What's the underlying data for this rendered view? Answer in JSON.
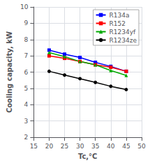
{
  "chart_data": {
    "type": "line",
    "xlabel": "Tc,°C",
    "ylabel": "Cooling capacity, kW",
    "x": [
      20,
      25,
      30,
      35,
      40,
      45
    ],
    "series": [
      {
        "name": "R134a",
        "color": "#0000ff",
        "marker": "square",
        "values": [
          7.35,
          7.1,
          6.9,
          6.6,
          6.35,
          6.05
        ]
      },
      {
        "name": "R152",
        "color": "#ff0000",
        "marker": "square",
        "values": [
          7.0,
          6.85,
          6.65,
          6.45,
          6.3,
          6.05
        ]
      },
      {
        "name": "R1234yf",
        "color": "#00aa00",
        "marker": "triangle",
        "values": [
          7.2,
          6.95,
          6.65,
          6.45,
          6.1,
          5.8
        ]
      },
      {
        "name": "R1234ze",
        "color": "#000000",
        "marker": "circle",
        "values": [
          6.05,
          5.82,
          5.6,
          5.37,
          5.13,
          4.93
        ]
      }
    ],
    "xlim": [
      15,
      50
    ],
    "ylim": [
      2,
      10
    ],
    "xticks": [
      15,
      20,
      25,
      30,
      35,
      40,
      45,
      50
    ],
    "yticks": [
      2,
      3,
      4,
      5,
      6,
      7,
      8,
      9,
      10
    ],
    "grid": true,
    "legend": "upper right"
  }
}
